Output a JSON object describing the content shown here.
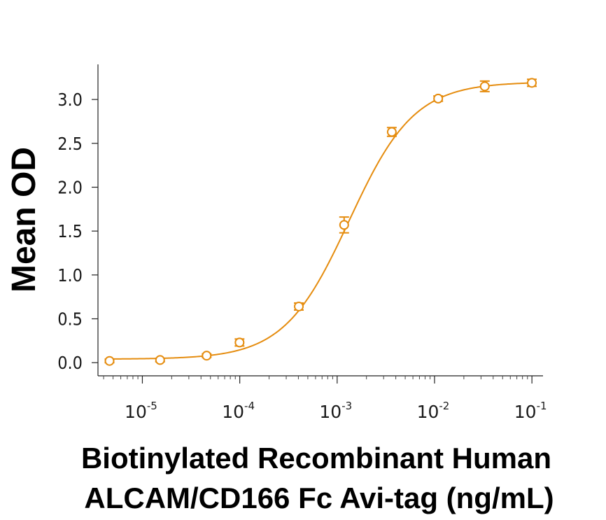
{
  "chart_data": {
    "type": "scatter",
    "title": "",
    "xlabel_lines": [
      "Biotinylated Recombinant Human",
      "ALCAM/CD166 Fc Avi-tag (ng/mL)"
    ],
    "ylabel": "Mean OD",
    "x_scale": "log",
    "xlim": [
      3.5e-06,
      0.13
    ],
    "ylim": [
      -0.15,
      3.4
    ],
    "grid": false,
    "legend": "none",
    "color": "#E58C0E",
    "x_ticks": [
      {
        "base": "10",
        "exp": "-5"
      },
      {
        "base": "10",
        "exp": "-4"
      },
      {
        "base": "10",
        "exp": "-3"
      },
      {
        "base": "10",
        "exp": "-2"
      },
      {
        "base": "10",
        "exp": "-1"
      }
    ],
    "y_ticks": [
      "0.0",
      "0.5",
      "1.0",
      "1.5",
      "2.0",
      "2.5",
      "3.0"
    ],
    "series": [
      {
        "points": [
          {
            "x": 4.6e-06,
            "y": 0.02,
            "err": 0.02
          },
          {
            "x": 1.52e-05,
            "y": 0.03,
            "err": 0.02
          },
          {
            "x": 4.57e-05,
            "y": 0.08,
            "err": 0.02
          },
          {
            "x": 9.95e-05,
            "y": 0.23,
            "err": 0.04
          },
          {
            "x": 0.000404,
            "y": 0.64,
            "err": 0.04
          },
          {
            "x": 0.00118,
            "y": 1.57,
            "err": 0.09
          },
          {
            "x": 0.00364,
            "y": 2.63,
            "err": 0.05
          },
          {
            "x": 0.0109,
            "y": 3.01,
            "err": 0.03
          },
          {
            "x": 0.0328,
            "y": 3.15,
            "err": 0.06
          },
          {
            "x": 0.0998,
            "y": 3.19,
            "err": 0.04
          }
        ],
        "fit": {
          "bottom": 0.04,
          "top": 3.2,
          "ec50": 0.00133,
          "hill": 1.3
        }
      }
    ]
  }
}
